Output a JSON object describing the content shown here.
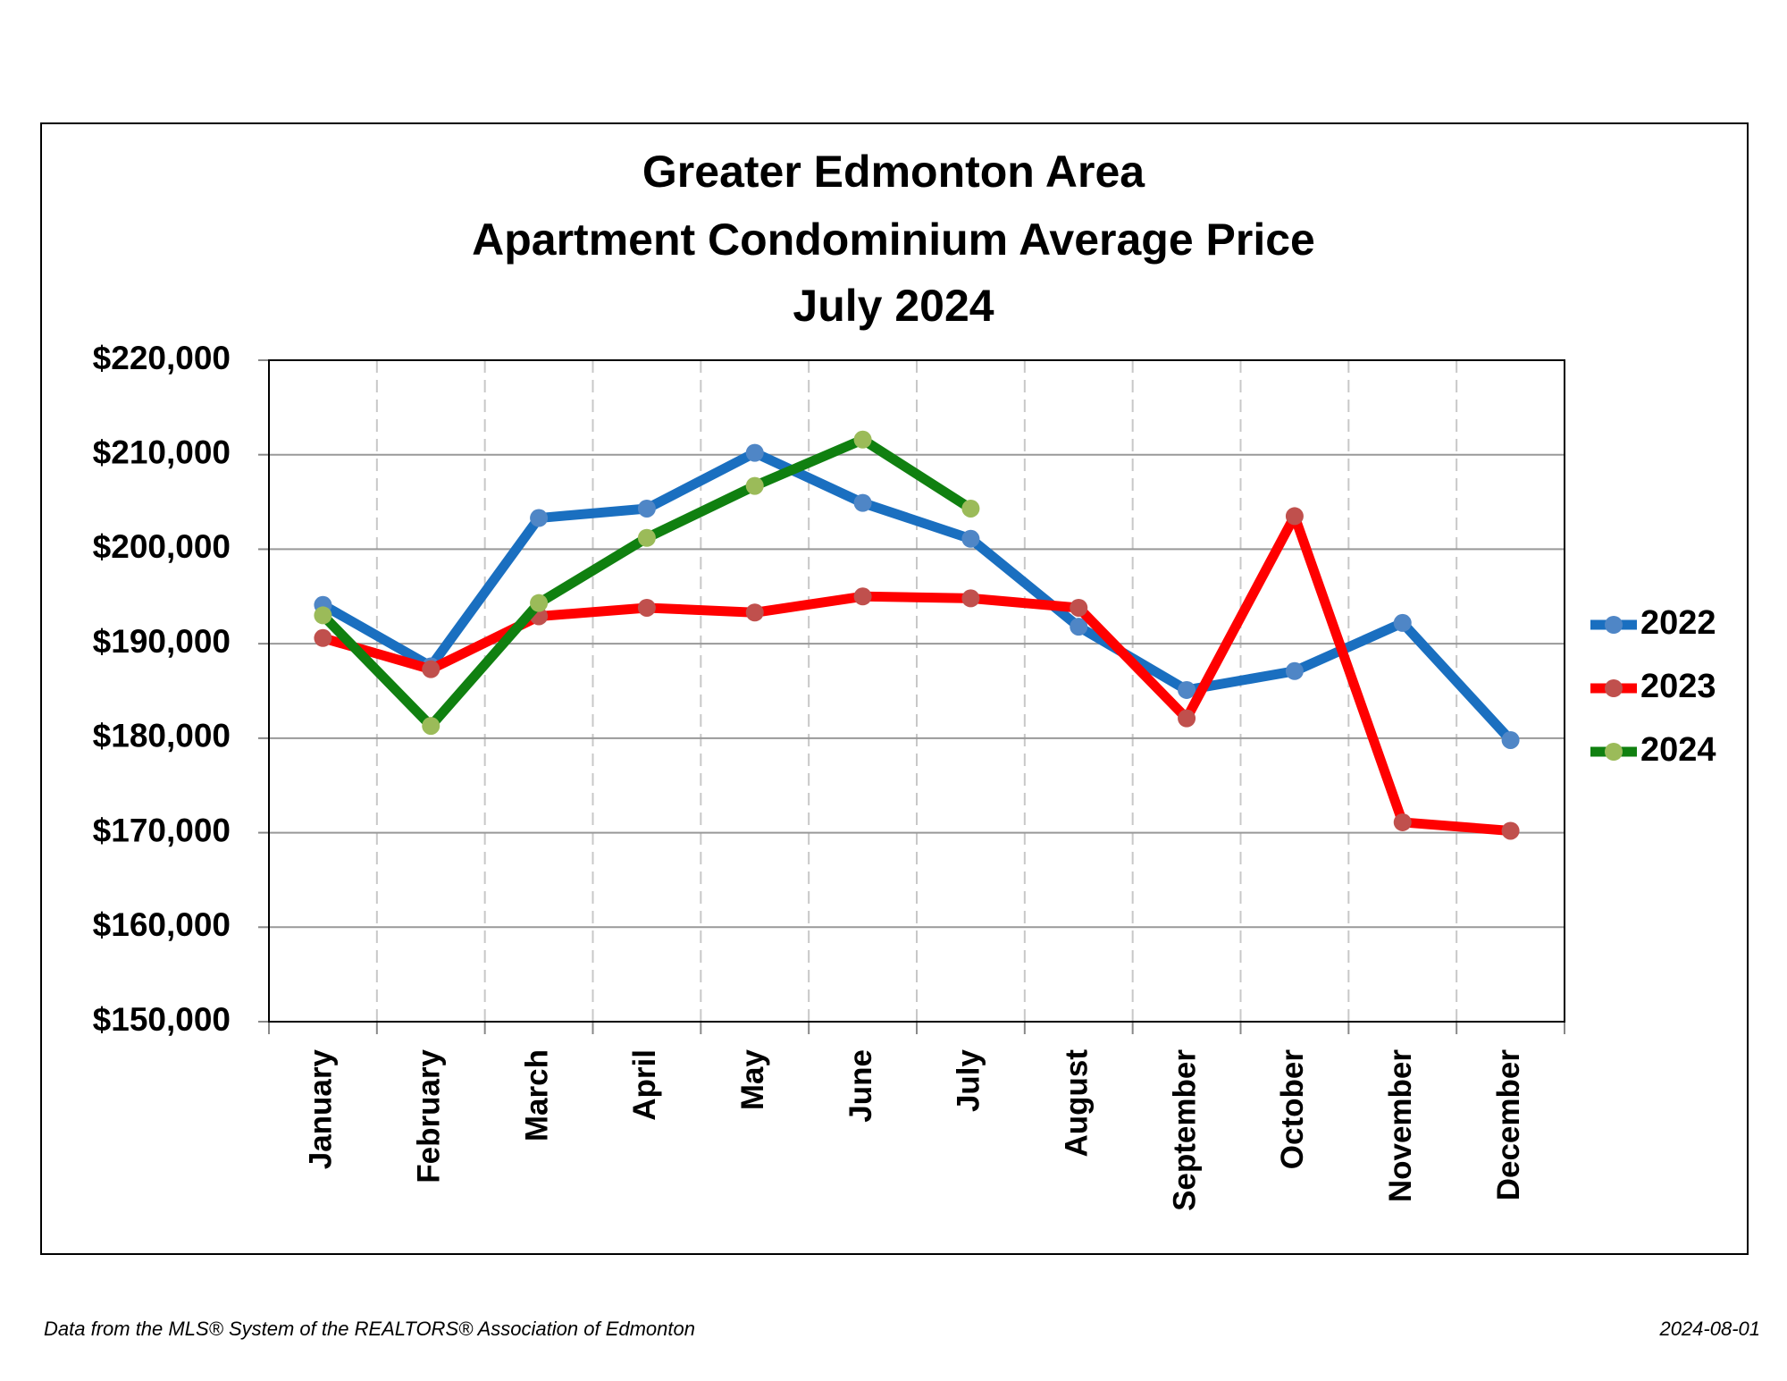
{
  "chart_data": {
    "type": "line",
    "title": [
      "Greater Edmonton Area",
      "Apartment Condominium Average Price",
      "July 2024"
    ],
    "categories": [
      "January",
      "February",
      "March",
      "April",
      "May",
      "June",
      "July",
      "August",
      "September",
      "October",
      "November",
      "December"
    ],
    "series": [
      {
        "name": "2022",
        "color": "#1a6fc0",
        "marker_color": "#4f86c6",
        "values": [
          194100,
          187600,
          203300,
          204300,
          210200,
          204900,
          201100,
          191800,
          185100,
          187100,
          192200,
          179800
        ]
      },
      {
        "name": "2023",
        "color": "#ff0000",
        "marker_color": "#c0504d",
        "values": [
          190600,
          187300,
          192900,
          193800,
          193300,
          195000,
          194800,
          193800,
          182100,
          203500,
          171100,
          170200
        ]
      },
      {
        "name": "2024",
        "color": "#108010",
        "marker_color": "#9bbb59",
        "values": [
          193000,
          181300,
          194300,
          201200,
          206700,
          211600,
          204300,
          null,
          null,
          null,
          null,
          null
        ]
      }
    ],
    "ylim": [
      150000,
      220000
    ],
    "yticks": [
      {
        "value": 150000,
        "label": "$150,000"
      },
      {
        "value": 160000,
        "label": "$160,000"
      },
      {
        "value": 170000,
        "label": "$170,000"
      },
      {
        "value": 180000,
        "label": "$180,000"
      },
      {
        "value": 190000,
        "label": "$190,000"
      },
      {
        "value": 200000,
        "label": "$200,000"
      },
      {
        "value": 210000,
        "label": "$210,000"
      },
      {
        "value": 220000,
        "label": "$220,000"
      }
    ],
    "grid": true,
    "legend": "right",
    "source": "Data from the MLS® System of the REALTORS® Association of Edmonton",
    "date": "2024-08-01"
  }
}
